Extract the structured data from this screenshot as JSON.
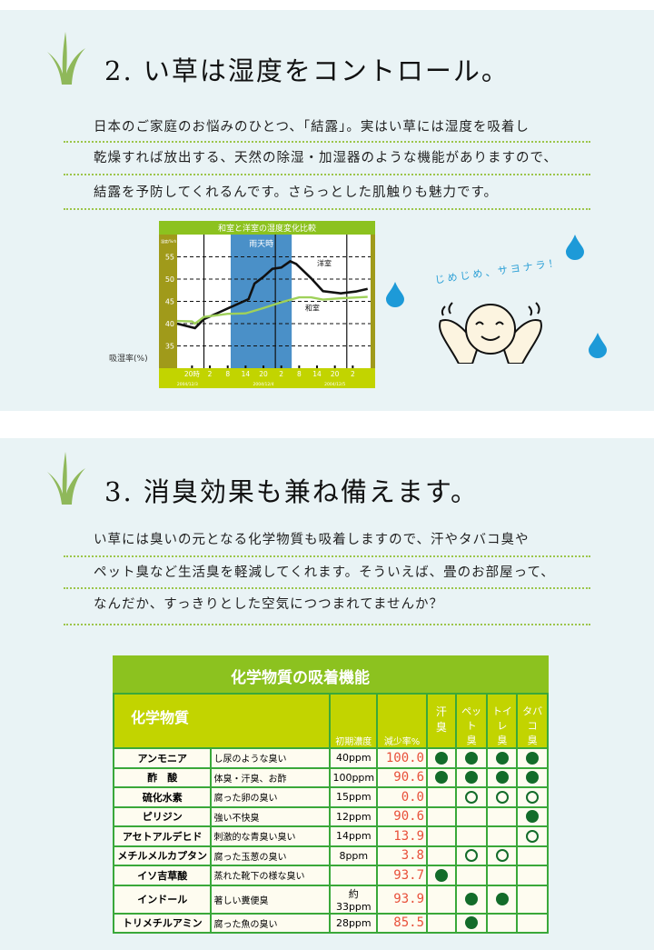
{
  "section1": {
    "heading": "2.  い草は湿度をコントロール。",
    "lines": [
      "日本のご家庭のお悩みのひとつ、「結露」。実はい草には湿度を吸着し",
      "乾燥すれば放出する、天然の除湿・加湿器のような機能がありますので、",
      "結露を予防してくれるんです。さらっとした肌触りも魅力です。"
    ],
    "speech": "じめじめ、サヨナラ！",
    "ylabel": "吸湿率(%)"
  },
  "chart_data": {
    "type": "line",
    "title": "和室と洋室の湿度変化比較",
    "yunit": "湿度/%rh",
    "ylim": [
      30,
      60
    ],
    "yticks": [
      35,
      40,
      45,
      50,
      55
    ],
    "x_tick_labels": [
      "20時",
      "2",
      "8",
      "14",
      "20",
      "2",
      "8",
      "14",
      "20",
      "2"
    ],
    "date_labels": [
      "2004/12/3",
      "2004/12/4",
      "2004/12/5",
      "2004/12/6"
    ],
    "annotation": "雨天時",
    "rain_period": [
      "2004-12-04T09:00",
      "2004-12-05T05:30"
    ],
    "series": [
      {
        "name": "洋室",
        "color": "#111111",
        "points": [
          [
            "2004-12-03T15:00",
            40
          ],
          [
            "2004-12-03T21:00",
            39
          ],
          [
            "2004-12-04T00:00",
            41
          ],
          [
            "2004-12-04T05:00",
            42.5
          ],
          [
            "2004-12-04T09:00",
            43.7
          ],
          [
            "2004-12-04T15:00",
            45.5
          ],
          [
            "2004-12-04T17:00",
            49
          ],
          [
            "2004-12-04T20:00",
            50.5
          ],
          [
            "2004-12-04T23:00",
            52.3
          ],
          [
            "2004-12-05T02:00",
            52.6
          ],
          [
            "2004-12-05T05:00",
            54
          ],
          [
            "2004-12-05T07:00",
            53.4
          ],
          [
            "2004-12-05T12:00",
            50.2
          ],
          [
            "2004-12-05T16:00",
            47.3
          ],
          [
            "2004-12-05T22:00",
            46.8
          ],
          [
            "2004-12-06T03:00",
            47.2
          ],
          [
            "2004-12-06T07:00",
            47.8
          ]
        ]
      },
      {
        "name": "和室",
        "color": "#9fd15a",
        "points": [
          [
            "2004-12-03T15:00",
            40.6
          ],
          [
            "2004-12-03T20:00",
            40.5
          ],
          [
            "2004-12-03T21:00",
            40
          ],
          [
            "2004-12-04T00:00",
            41.5
          ],
          [
            "2004-12-04T08:00",
            42.2
          ],
          [
            "2004-12-04T14:00",
            42.3
          ],
          [
            "2004-12-04T20:00",
            43.5
          ],
          [
            "2004-12-05T02:00",
            44.8
          ],
          [
            "2004-12-05T08:00",
            45.9
          ],
          [
            "2004-12-05T12:00",
            45.9
          ],
          [
            "2004-12-05T16:00",
            45.4
          ],
          [
            "2004-12-05T22:00",
            45.7
          ],
          [
            "2004-12-06T07:00",
            46
          ]
        ]
      }
    ]
  },
  "section2": {
    "heading": "3.  消臭効果も兼ね備えます。",
    "lines": [
      "い草には臭いの元となる化学物質も吸着しますので、汗やタバコ臭や",
      "ペット臭など生活臭を軽減してくれます。そういえば、畳のお部屋って、",
      "なんだか、すっきりとした空気につつまれてませんか？"
    ]
  },
  "table": {
    "title": "化学物質の吸着機能",
    "headers": [
      "化学物質",
      "初期濃度",
      "減少率%",
      "汗\n臭",
      "ペット\n臭",
      "トイレ\n臭",
      "タバコ\n臭"
    ],
    "legend": {
      "full": "●",
      "open": "○"
    },
    "rows": [
      {
        "name": "アンモニア",
        "desc": "し尿のような臭い",
        "conc": "40ppm",
        "rate": "100.0",
        "marks": [
          "full",
          "full",
          "full",
          "full"
        ]
      },
      {
        "name": "酢　酸",
        "desc": "体臭・汗臭、お酢",
        "conc": "100ppm",
        "rate": "90.6",
        "marks": [
          "full",
          "full",
          "full",
          "full"
        ]
      },
      {
        "name": "硫化水素",
        "desc": "腐った卵の臭い",
        "conc": "15ppm",
        "rate": "0.0",
        "marks": [
          "",
          "open",
          "open",
          "open"
        ]
      },
      {
        "name": "ピリジン",
        "desc": "強い不快臭",
        "conc": "12ppm",
        "rate": "90.6",
        "marks": [
          "",
          "",
          "",
          "full"
        ]
      },
      {
        "name": "アセトアルデヒド",
        "desc": "刺激的な青臭い臭い",
        "conc": "14ppm",
        "rate": "13.9",
        "marks": [
          "",
          "",
          "",
          "open"
        ]
      },
      {
        "name": "メチルメルカプタン",
        "desc": "腐った玉葱の臭い",
        "conc": "8ppm",
        "rate": "3.8",
        "marks": [
          "",
          "open",
          "open",
          ""
        ]
      },
      {
        "name": "イソ吉草酸",
        "desc": "蒸れた靴下の様な臭い",
        "conc": "",
        "rate": "93.7",
        "marks": [
          "full",
          "",
          "",
          ""
        ]
      },
      {
        "name": "インドール",
        "desc": "著しい糞便臭",
        "conc": "約33ppm",
        "rate": "93.9",
        "marks": [
          "",
          "full",
          "full",
          ""
        ]
      },
      {
        "name": "トリメチルアミン",
        "desc": "腐った魚の臭い",
        "conc": "28ppm",
        "rate": "85.5",
        "marks": [
          "",
          "full",
          "",
          ""
        ]
      }
    ]
  }
}
